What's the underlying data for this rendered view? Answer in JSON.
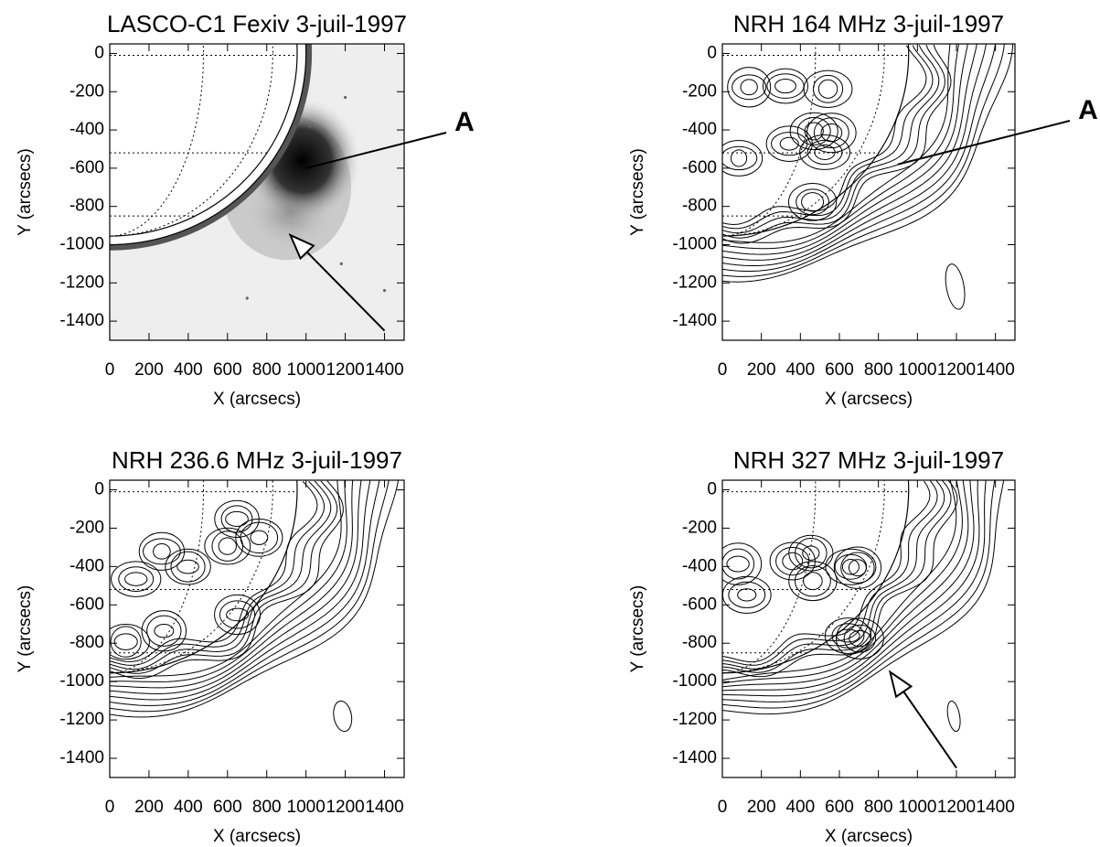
{
  "chart_data": [
    {
      "type": "image",
      "title": "LASCO-C1 Fexiv 3-juil-1997",
      "xlabel": "X (arcsecs)",
      "ylabel": "Y (arcsecs)",
      "xlim": [
        0,
        1500
      ],
      "ylim": [
        -1500,
        50
      ],
      "xticks": [
        0,
        200,
        400,
        600,
        800,
        1000,
        1200,
        1400
      ],
      "yticks": [
        0,
        -200,
        -400,
        -600,
        -800,
        -1000,
        -1200,
        -1400
      ],
      "annotations": [
        "A"
      ]
    },
    {
      "type": "contour",
      "title": "NRH 164 MHz 3-juil-1997",
      "xlabel": "X (arcsecs)",
      "ylabel": "Y (arcsecs)",
      "xlim": [
        0,
        1500
      ],
      "ylim": [
        -1500,
        50
      ],
      "xticks": [
        0,
        200,
        400,
        600,
        800,
        1000,
        1200,
        1400
      ],
      "yticks": [
        0,
        -200,
        -400,
        -600,
        -800,
        -1000,
        -1200,
        -1400
      ],
      "annotations": [
        "A"
      ]
    },
    {
      "type": "contour",
      "title": "NRH 236.6 MHz 3-juil-1997",
      "xlabel": "X (arcsecs)",
      "ylabel": "Y (arcsecs)",
      "xlim": [
        0,
        1500
      ],
      "ylim": [
        -1500,
        50
      ],
      "xticks": [
        0,
        200,
        400,
        600,
        800,
        1000,
        1200,
        1400
      ],
      "yticks": [
        0,
        -200,
        -400,
        -600,
        -800,
        -1000,
        -1200,
        -1400
      ]
    },
    {
      "type": "contour",
      "title": "NRH 327 MHz 3-juil-1997",
      "xlabel": "X (arcsecs)",
      "ylabel": "Y (arcsecs)",
      "xlim": [
        0,
        1500
      ],
      "ylim": [
        -1500,
        50
      ],
      "xticks": [
        0,
        200,
        400,
        600,
        800,
        1000,
        1200,
        1400
      ],
      "yticks": [
        0,
        -200,
        -400,
        -600,
        -800,
        -1000,
        -1200,
        -1400
      ]
    }
  ]
}
